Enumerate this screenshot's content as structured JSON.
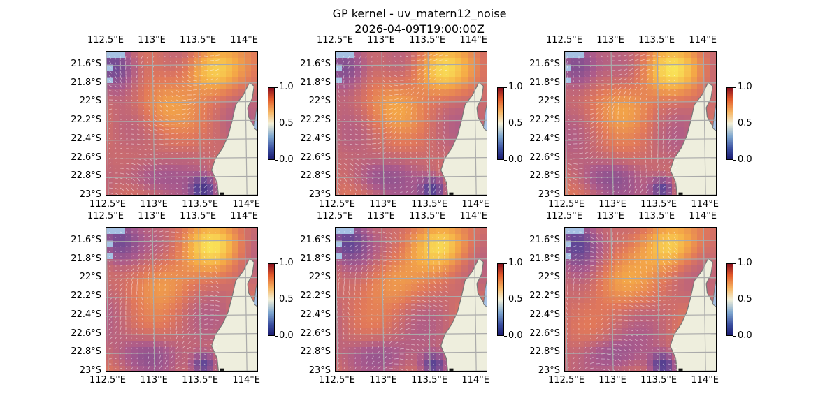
{
  "title": "GP kernel - uv_matern12_noise",
  "subtitle": "2026-04-09T19:00:00Z",
  "chart_data": {
    "type": "heatmap",
    "layout": "2 rows x 3 columns of map panels",
    "panel_count": 6,
    "x_ticks": [
      "112.5°E",
      "113°E",
      "113.5°E",
      "114°E"
    ],
    "x_tick_values": [
      112.5,
      113.0,
      113.5,
      114.0
    ],
    "y_ticks": [
      "21.6°S",
      "21.8°S",
      "22°S",
      "22.2°S",
      "22.4°S",
      "22.6°S",
      "22.8°S",
      "23°S"
    ],
    "y_tick_values": [
      -21.6,
      -21.8,
      -22.0,
      -22.2,
      -22.4,
      -22.6,
      -22.8,
      -23.0
    ],
    "x_range": [
      112.5,
      114.15
    ],
    "y_range": [
      -23.0,
      -21.45
    ],
    "colorbar": {
      "ticks": [
        "0.0",
        "0.5",
        "1.0"
      ],
      "range": [
        0.0,
        1.0
      ],
      "colormap": "RdYlBu_r"
    },
    "overlay": "vector field arrows (white/grey)",
    "land_color": "#eeeedd",
    "ocean_color": "#a6c1e3",
    "grid": true
  }
}
